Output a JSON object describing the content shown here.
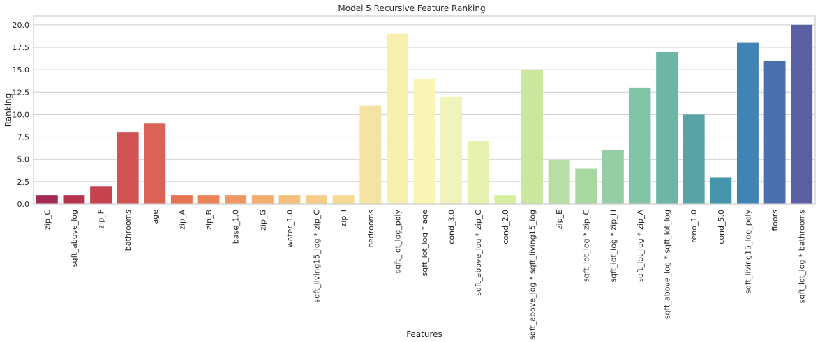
{
  "chart_data": {
    "type": "bar",
    "title": "Model 5 Recursive Feature Ranking",
    "xlabel": "Features",
    "ylabel": "Ranking",
    "ylim": [
      0,
      21
    ],
    "yticks": [
      "0.0",
      "2.5",
      "5.0",
      "7.5",
      "10.0",
      "12.5",
      "15.0",
      "17.5",
      "20.0"
    ],
    "grid": true,
    "categories": [
      "zip_C",
      "sqft_above_log",
      "zip_F",
      "bathrooms",
      "age",
      "zip_A",
      "zip_B",
      "base_1.0",
      "zip_G",
      "water_1.0",
      "sqft_living15_log * zip_C",
      "zip_I",
      "bedrooms",
      "sqft_lot_log_poly",
      "sqft_lot_log * age",
      "cond_3.0",
      "sqft_above_log * zip_C",
      "cond_2.0",
      "sqft_above_log * sqft_living15_log",
      "zip_E",
      "sqft_lot_log * zip_C",
      "sqft_lot_log * zip_H",
      "sqft_lot_log * zip_A",
      "sqft_above_log * sqft_lot_log",
      "reno_1.0",
      "cond_5.0",
      "sqft_living15_log_poly",
      "floors",
      "sqft_lot_log * bathrooms"
    ],
    "values": [
      1,
      1,
      2,
      8,
      9,
      1,
      1,
      1,
      1,
      1,
      1,
      1,
      11,
      19,
      14,
      12,
      7,
      1,
      15,
      5,
      4,
      6,
      13,
      17,
      10,
      3,
      18,
      16,
      20
    ],
    "colors": [
      "#a52a4f",
      "#b7344e",
      "#c7434f",
      "#d15353",
      "#db6257",
      "#e4734f",
      "#ea8458",
      "#ef9863",
      "#f3ad6c",
      "#f5c07b",
      "#f6cd87",
      "#f5db93",
      "#f5e3a4",
      "#f6efae",
      "#f8f5b7",
      "#f0f4ba",
      "#e6f3b0",
      "#d9efa0",
      "#cbe69d",
      "#b7dea4",
      "#a9d7a2",
      "#95cda5",
      "#81c4a6",
      "#6db5a4",
      "#57a3a6",
      "#4595ad",
      "#3f84b4",
      "#4a71ad",
      "#5a5fa3"
    ]
  }
}
